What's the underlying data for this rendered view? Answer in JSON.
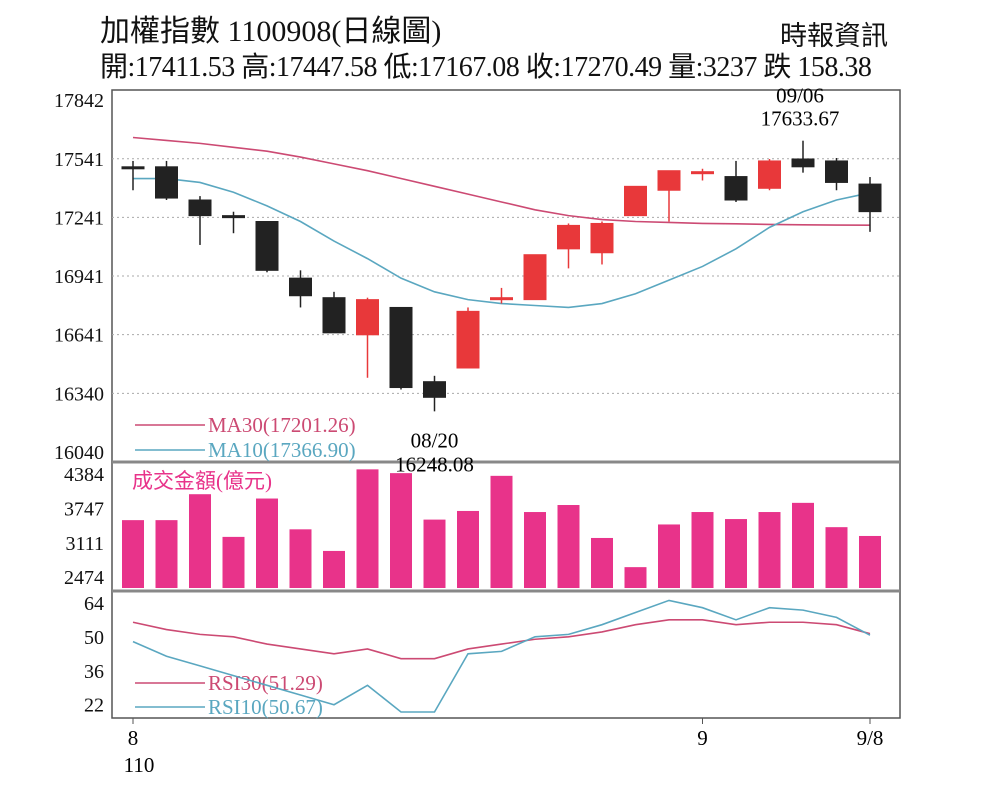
{
  "header": {
    "title": "加權指數 1100908(日線圖)",
    "source": "時報資訊",
    "ohlc_line": "開:17411.53 高:17447.58 低:17167.08 收:17270.49 量:3237 跌 158.38"
  },
  "colors": {
    "up": "#e8383a",
    "down": "#222222",
    "ma30": "#cc4a73",
    "ma10": "#5aa7c0",
    "volume": "#e8338a",
    "grid": "#aaaaaa"
  },
  "chart_data": [
    {
      "type": "candlestick",
      "y_ticks": [
        "17842",
        "17541",
        "17241",
        "16941",
        "16641",
        "16340",
        "16040"
      ],
      "ylim": [
        16040,
        17842
      ],
      "candles": [
        {
          "o": 17500,
          "h": 17530,
          "l": 17380,
          "c": 17490
        },
        {
          "o": 17500,
          "h": 17530,
          "l": 17330,
          "c": 17340
        },
        {
          "o": 17330,
          "h": 17350,
          "l": 17100,
          "c": 17250
        },
        {
          "o": 17250,
          "h": 17270,
          "l": 17160,
          "c": 17245
        },
        {
          "o": 17220,
          "h": 17220,
          "l": 16960,
          "c": 16970
        },
        {
          "o": 16930,
          "h": 16970,
          "l": 16780,
          "c": 16840
        },
        {
          "o": 16830,
          "h": 16860,
          "l": 16650,
          "c": 16650
        },
        {
          "o": 16640,
          "h": 16830,
          "l": 16420,
          "c": 16820
        },
        {
          "o": 16780,
          "h": 16780,
          "l": 16360,
          "c": 16370
        },
        {
          "o": 16400,
          "h": 16430,
          "l": 16248.08,
          "c": 16320
        },
        {
          "o": 16470,
          "h": 16780,
          "l": 16470,
          "c": 16760
        },
        {
          "o": 16820,
          "h": 16880,
          "l": 16800,
          "c": 16830
        },
        {
          "o": 16820,
          "h": 17050,
          "l": 16820,
          "c": 17050
        },
        {
          "o": 17080,
          "h": 17210,
          "l": 16980,
          "c": 17200
        },
        {
          "o": 17060,
          "h": 17220,
          "l": 17000,
          "c": 17210
        },
        {
          "o": 17250,
          "h": 17400,
          "l": 17250,
          "c": 17400
        },
        {
          "o": 17380,
          "h": 17480,
          "l": 17220,
          "c": 17480
        },
        {
          "o": 17470,
          "h": 17490,
          "l": 17430,
          "c": 17475
        },
        {
          "o": 17450,
          "h": 17530,
          "l": 17320,
          "c": 17330
        },
        {
          "o": 17390,
          "h": 17540,
          "l": 17380,
          "c": 17530
        },
        {
          "o": 17540,
          "h": 17633.67,
          "l": 17470,
          "c": 17500
        },
        {
          "o": 17530,
          "h": 17545,
          "l": 17380,
          "c": 17420
        },
        {
          "o": 17411.53,
          "h": 17447.58,
          "l": 17167.08,
          "c": 17270.49
        }
      ],
      "ma30": [
        17650,
        17635,
        17620,
        17600,
        17580,
        17550,
        17515,
        17480,
        17440,
        17400,
        17360,
        17320,
        17280,
        17250,
        17230,
        17220,
        17215,
        17210,
        17208,
        17205,
        17203,
        17202,
        17201.26
      ],
      "ma10": [
        17440,
        17440,
        17420,
        17370,
        17300,
        17220,
        17120,
        17030,
        16930,
        16860,
        16820,
        16800,
        16790,
        16780,
        16800,
        16850,
        16920,
        16990,
        17080,
        17190,
        17270,
        17330,
        17366.9
      ],
      "high_label": {
        "date": "09/06",
        "value": "17633.67"
      },
      "low_label": {
        "date": "08/20",
        "value": "16248.08"
      },
      "legend": [
        {
          "name": "MA30(17201.26)",
          "color": "#cc4a73"
        },
        {
          "name": "MA10(17366.90)",
          "color": "#5aa7c0"
        }
      ]
    },
    {
      "type": "bar",
      "title": "成交金額(億元)",
      "y_ticks": [
        "4384",
        "3747",
        "3111",
        "2474"
      ],
      "ylim": [
        2274,
        4384
      ],
      "values": [
        3530,
        3530,
        4010,
        3220,
        3930,
        3360,
        2960,
        4470,
        4400,
        3540,
        3700,
        4350,
        3680,
        3810,
        3200,
        2660,
        3450,
        3680,
        3550,
        3680,
        3850,
        3400,
        3237
      ]
    },
    {
      "type": "line",
      "y_ticks": [
        "64",
        "50",
        "36",
        "22"
      ],
      "ylim": [
        19,
        66
      ],
      "series": [
        {
          "name": "RSI30(51.29)",
          "color": "#cc4a73",
          "values": [
            56,
            53,
            51,
            50,
            47,
            45,
            43,
            45,
            41,
            41,
            45,
            47,
            49,
            50,
            52,
            55,
            57,
            57,
            55,
            56,
            56,
            55,
            51.29
          ]
        },
        {
          "name": "RSI10(50.67)",
          "color": "#5aa7c0",
          "values": [
            48,
            42,
            38,
            34,
            30,
            26,
            22,
            30,
            19,
            19,
            43,
            44,
            50,
            51,
            55,
            60,
            65,
            62,
            57,
            62,
            61,
            58,
            50.67
          ]
        }
      ]
    }
  ],
  "x_axis": {
    "labels": [
      {
        "index": 0,
        "text": "8"
      },
      {
        "index": 17,
        "text": "9"
      },
      {
        "index": 22,
        "text": "9/8"
      }
    ],
    "year_label": "110"
  }
}
